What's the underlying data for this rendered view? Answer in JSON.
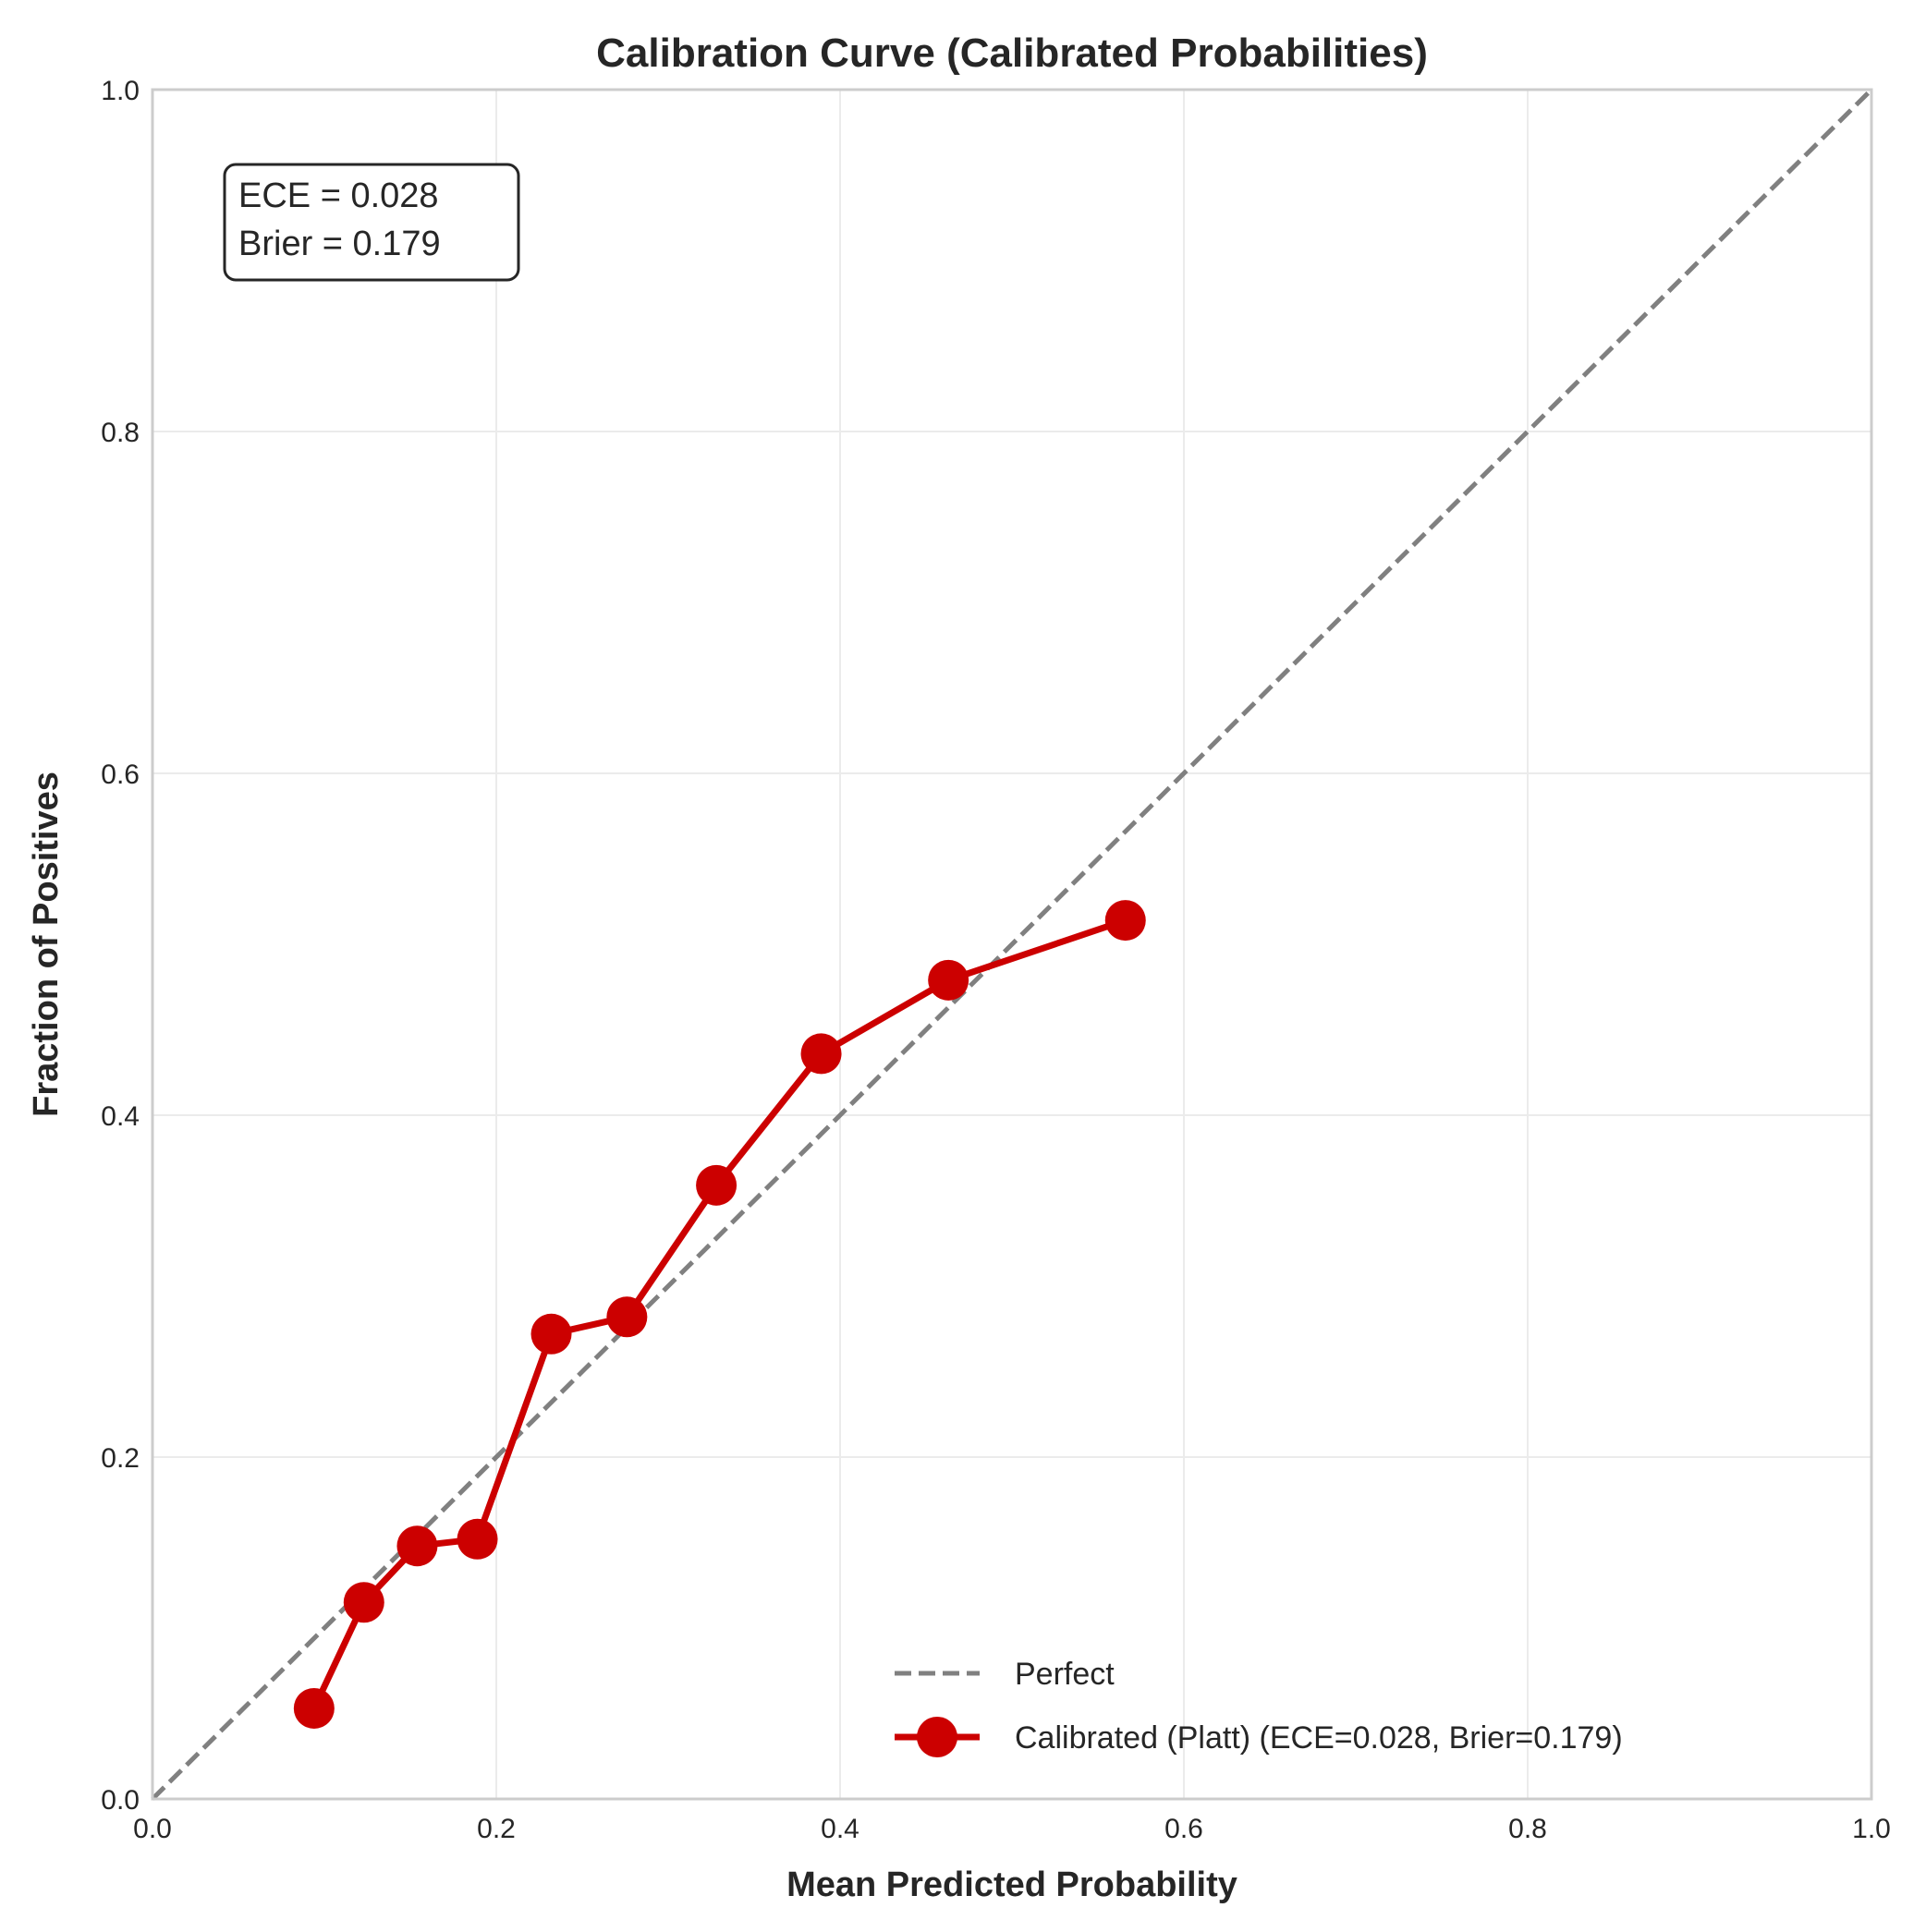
{
  "chart_data": {
    "type": "line",
    "title": "Calibration Curve (Calibrated Probabilities)",
    "xlabel": "Mean Predicted Probability",
    "ylabel": "Fraction of Positives",
    "xlim": [
      0.0,
      1.0
    ],
    "ylim": [
      0.0,
      1.0
    ],
    "x_ticks": [
      "0.0",
      "0.2",
      "0.4",
      "0.6",
      "0.8",
      "1.0"
    ],
    "y_ticks": [
      "0.0",
      "0.2",
      "0.4",
      "0.6",
      "0.8",
      "1.0"
    ],
    "grid": true,
    "legend_position": "bottom-right",
    "annotation": {
      "lines": [
        "ECE = 0.028",
        "Brier = 0.179"
      ],
      "position": "top-left"
    },
    "series": [
      {
        "name": "Perfect",
        "style": "dashed",
        "color": "#808080",
        "x": [
          0.0,
          1.0
        ],
        "y": [
          0.0,
          1.0
        ]
      },
      {
        "name": "Calibrated (Platt) (ECE=0.028, Brier=0.179)",
        "style": "solid-markers",
        "color": "#cc0000",
        "x": [
          0.094,
          0.123,
          0.154,
          0.189,
          0.232,
          0.276,
          0.328,
          0.389,
          0.463,
          0.566
        ],
        "y": [
          0.053,
          0.115,
          0.148,
          0.152,
          0.272,
          0.282,
          0.359,
          0.436,
          0.479,
          0.514
        ]
      }
    ]
  }
}
